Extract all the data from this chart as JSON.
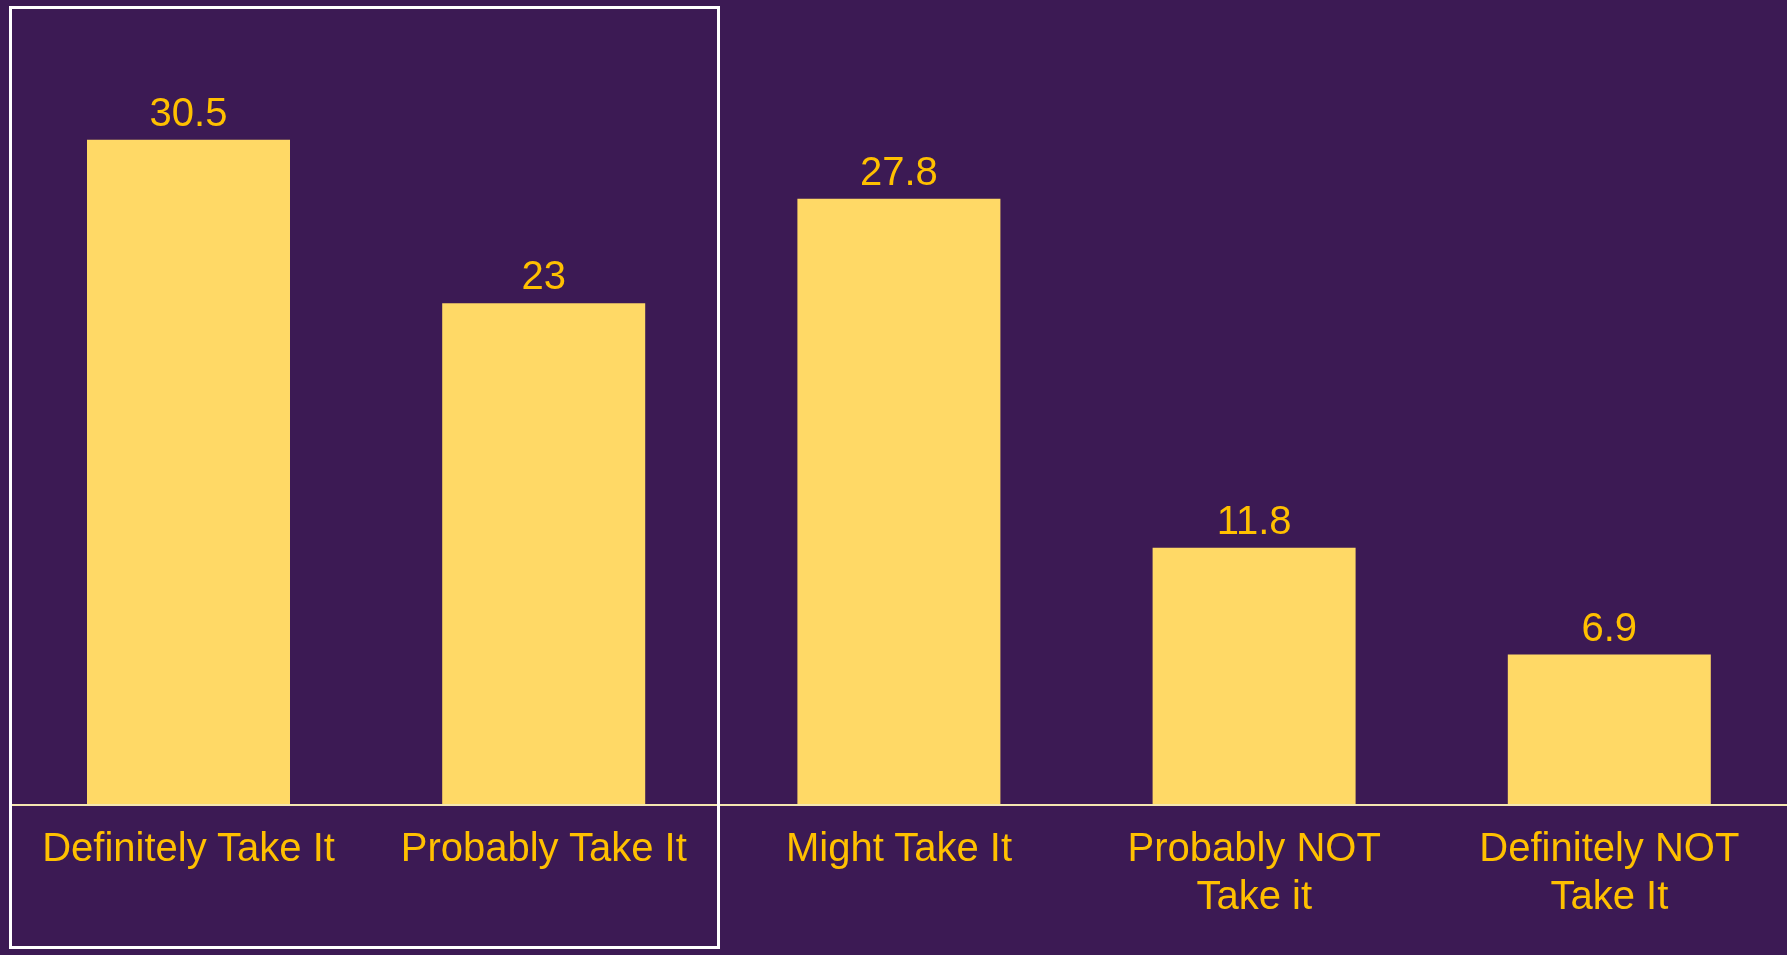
{
  "chart_data": {
    "type": "bar",
    "categories": [
      "Definitely Take It",
      "Probably Take It",
      "Might Take It",
      "Probably NOT Take it",
      "Definitely NOT Take It"
    ],
    "values": [
      30.5,
      23,
      27.8,
      11.8,
      6.9
    ],
    "color": "#ffd966",
    "data_labels": true,
    "tick_labels": "x"
  }
}
